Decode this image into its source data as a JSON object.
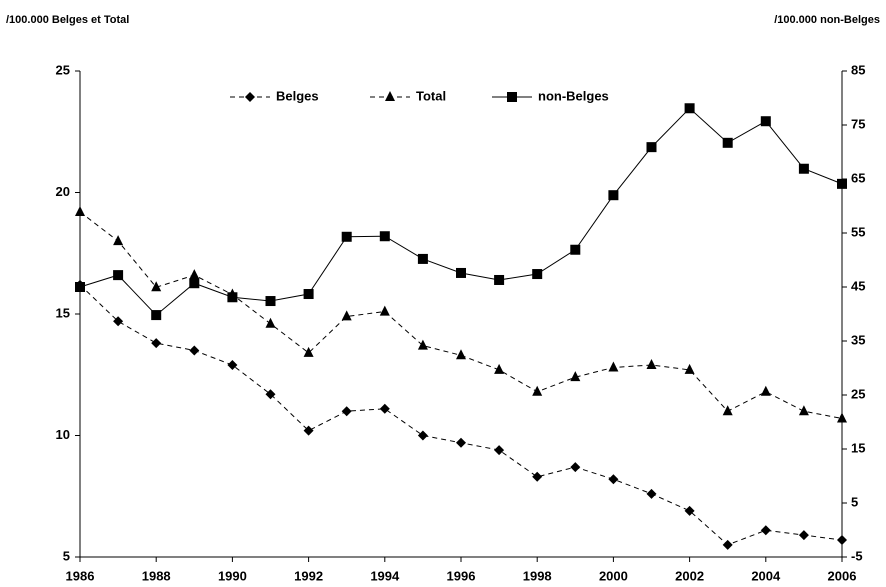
{
  "chart_data": {
    "type": "line",
    "y_label": "/100.000 Belges et Total",
    "y2_label": "/100.000 non-Belges",
    "x": [
      1986,
      1987,
      1988,
      1989,
      1990,
      1991,
      1992,
      1993,
      1994,
      1995,
      1996,
      1997,
      1998,
      1999,
      2000,
      2001,
      2002,
      2003,
      2004,
      2005,
      2006
    ],
    "xlim": [
      1986,
      2006
    ],
    "xticks": [
      1986,
      1988,
      1990,
      1992,
      1994,
      1996,
      1998,
      2000,
      2002,
      2004,
      2006
    ],
    "ylim": [
      5,
      25
    ],
    "yticks": [
      5,
      10,
      15,
      20,
      25
    ],
    "y2lim": [
      -5,
      85
    ],
    "y2ticks": [
      -5,
      5,
      15,
      25,
      35,
      45,
      55,
      65,
      75,
      85
    ],
    "series": [
      {
        "name": "Belges",
        "color": "#000000",
        "dashed": true,
        "marker": "diamond",
        "values": [
          16.2,
          14.7,
          13.8,
          13.5,
          12.9,
          11.7,
          10.2,
          11.0,
          11.1,
          10.0,
          9.7,
          9.4,
          8.3,
          8.7,
          8.2,
          7.6,
          6.9,
          5.5,
          6.1,
          5.9,
          5.7
        ]
      },
      {
        "name": "Total",
        "color": "#000000",
        "dashed": true,
        "marker": "triangle",
        "values": [
          19.2,
          18.0,
          16.1,
          16.6,
          15.8,
          14.6,
          13.4,
          14.9,
          15.1,
          13.7,
          13.3,
          12.7,
          11.8,
          12.4,
          12.8,
          12.9,
          12.7,
          11.0,
          11.8,
          11.0,
          10.7
        ]
      },
      {
        "name": "non-Belges",
        "color": "#000000",
        "dashed": false,
        "marker": "square",
        "axis": "y2",
        "values": [
          45.0,
          47.2,
          39.8,
          45.7,
          43.1,
          42.4,
          43.7,
          54.3,
          54.4,
          50.2,
          47.6,
          46.3,
          47.4,
          51.9,
          62.0,
          70.9,
          78.1,
          71.7,
          75.7,
          66.9,
          64.1
        ]
      }
    ]
  }
}
